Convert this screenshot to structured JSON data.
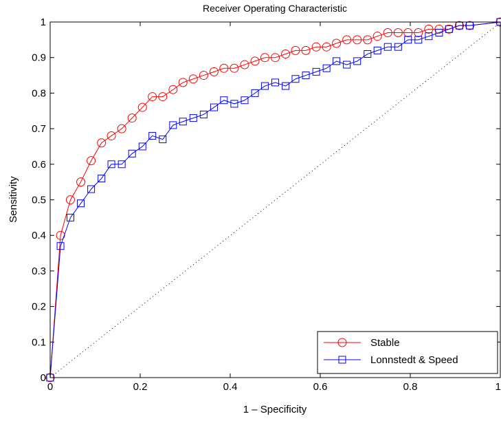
{
  "chart_data": {
    "type": "line",
    "title": "Receiver Operating Characteristic",
    "xlabel": "1 – Specificity",
    "ylabel": "Sensitivity",
    "xlim": [
      0,
      1
    ],
    "ylim": [
      0,
      1
    ],
    "x_ticks": [
      "0",
      "0.2",
      "0.4",
      "0.6",
      "0.8",
      "1"
    ],
    "y_ticks": [
      "0",
      "0.1",
      "0.2",
      "0.3",
      "0.4",
      "0.5",
      "0.6",
      "0.7",
      "0.8",
      "0.9",
      "1"
    ],
    "grid": false,
    "legend_position": "bottom-right",
    "reference_line": "diagonal",
    "series": [
      {
        "name": "Stable",
        "color": "#ff0000",
        "marker": "circle",
        "points": [
          [
            0.0,
            0.0
          ],
          [
            0.023,
            0.4
          ],
          [
            0.045,
            0.5
          ],
          [
            0.068,
            0.55
          ],
          [
            0.091,
            0.61
          ],
          [
            0.114,
            0.66
          ],
          [
            0.136,
            0.68
          ],
          [
            0.159,
            0.7
          ],
          [
            0.182,
            0.73
          ],
          [
            0.205,
            0.76
          ],
          [
            0.227,
            0.79
          ],
          [
            0.25,
            0.79
          ],
          [
            0.273,
            0.81
          ],
          [
            0.295,
            0.83
          ],
          [
            0.318,
            0.84
          ],
          [
            0.341,
            0.85
          ],
          [
            0.364,
            0.86
          ],
          [
            0.386,
            0.87
          ],
          [
            0.409,
            0.87
          ],
          [
            0.432,
            0.88
          ],
          [
            0.455,
            0.89
          ],
          [
            0.477,
            0.9
          ],
          [
            0.5,
            0.9
          ],
          [
            0.523,
            0.91
          ],
          [
            0.545,
            0.92
          ],
          [
            0.568,
            0.92
          ],
          [
            0.591,
            0.93
          ],
          [
            0.614,
            0.93
          ],
          [
            0.636,
            0.94
          ],
          [
            0.659,
            0.95
          ],
          [
            0.682,
            0.95
          ],
          [
            0.705,
            0.95
          ],
          [
            0.727,
            0.96
          ],
          [
            0.75,
            0.97
          ],
          [
            0.773,
            0.97
          ],
          [
            0.795,
            0.97
          ],
          [
            0.818,
            0.97
          ],
          [
            0.841,
            0.98
          ],
          [
            0.864,
            0.98
          ],
          [
            0.886,
            0.98
          ],
          [
            0.909,
            0.99
          ],
          [
            0.932,
            0.99
          ],
          [
            1.0,
            1.0
          ]
        ]
      },
      {
        "name": "Lonnstedt & Speed",
        "color": "#0000ff",
        "marker": "square",
        "points": [
          [
            0.0,
            0.0
          ],
          [
            0.023,
            0.37
          ],
          [
            0.045,
            0.45
          ],
          [
            0.068,
            0.49
          ],
          [
            0.091,
            0.53
          ],
          [
            0.114,
            0.56
          ],
          [
            0.136,
            0.6
          ],
          [
            0.159,
            0.6
          ],
          [
            0.182,
            0.63
          ],
          [
            0.205,
            0.65
          ],
          [
            0.227,
            0.68
          ],
          [
            0.25,
            0.67
          ],
          [
            0.273,
            0.71
          ],
          [
            0.295,
            0.72
          ],
          [
            0.318,
            0.73
          ],
          [
            0.341,
            0.74
          ],
          [
            0.364,
            0.76
          ],
          [
            0.386,
            0.78
          ],
          [
            0.409,
            0.77
          ],
          [
            0.432,
            0.78
          ],
          [
            0.455,
            0.8
          ],
          [
            0.477,
            0.82
          ],
          [
            0.5,
            0.83
          ],
          [
            0.523,
            0.82
          ],
          [
            0.545,
            0.84
          ],
          [
            0.568,
            0.85
          ],
          [
            0.591,
            0.86
          ],
          [
            0.614,
            0.87
          ],
          [
            0.636,
            0.89
          ],
          [
            0.659,
            0.88
          ],
          [
            0.682,
            0.89
          ],
          [
            0.705,
            0.91
          ],
          [
            0.727,
            0.92
          ],
          [
            0.75,
            0.93
          ],
          [
            0.773,
            0.93
          ],
          [
            0.795,
            0.95
          ],
          [
            0.818,
            0.95
          ],
          [
            0.841,
            0.96
          ],
          [
            0.864,
            0.97
          ],
          [
            0.886,
            0.98
          ],
          [
            0.909,
            0.99
          ],
          [
            0.932,
            0.99
          ],
          [
            1.0,
            1.0
          ]
        ]
      }
    ]
  }
}
